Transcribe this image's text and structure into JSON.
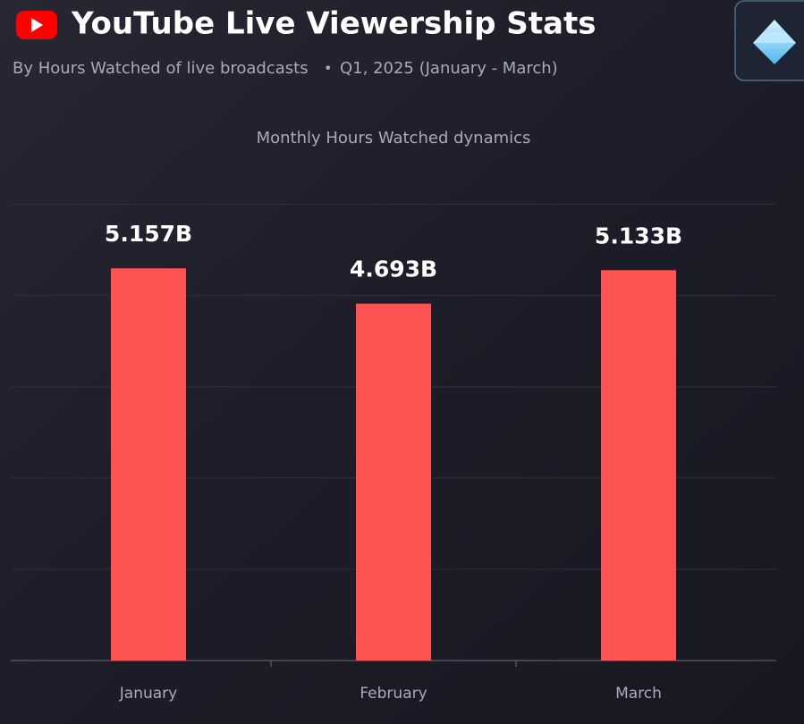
{
  "header": {
    "title": "YouTube Live Viewership Stats",
    "subtitle": "By Hours Watched of live broadcasts",
    "separator": "•",
    "period": "Q1, 2025 (January - March)"
  },
  "chart_data": {
    "type": "bar",
    "title": "Monthly Hours Watched dynamics",
    "categories": [
      "January",
      "February",
      "March"
    ],
    "values": [
      5.157,
      4.693,
      5.133
    ],
    "value_labels": [
      "5.157B",
      "4.693B",
      "5.133B"
    ],
    "color": "#ff5252",
    "ylim": [
      0,
      6.1
    ],
    "yticks": [
      0,
      1.2,
      2.4,
      3.6,
      4.8,
      6
    ],
    "grid": true
  }
}
